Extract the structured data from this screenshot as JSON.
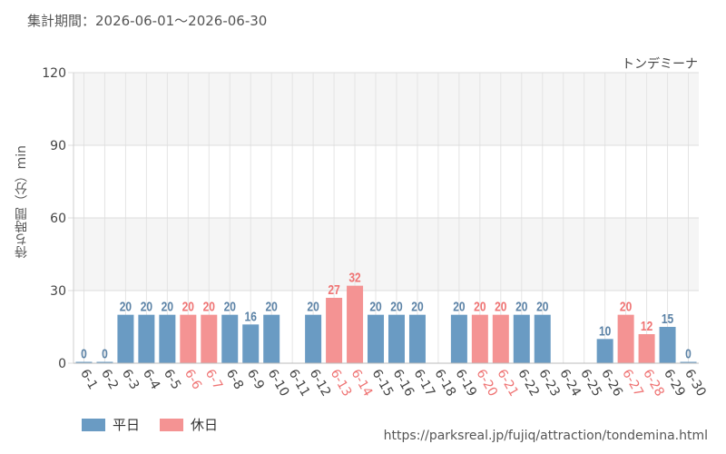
{
  "header": {
    "period_text": "集計期間：2026-06-01～2026-06-30",
    "attraction_name": "トンデミーナ",
    "source_url": "https://parksreal.jp/fujiq/attraction/tondemina.html"
  },
  "colors": {
    "weekday": "#6a9bc3",
    "holiday": "#f49393",
    "weekday_label": "#5b82a6",
    "holiday_label": "#ef7373",
    "band": "#f5f5f5",
    "grid": "#e4e4e4"
  },
  "legend": [
    {
      "label": "平日",
      "key": "weekday"
    },
    {
      "label": "休日",
      "key": "holiday"
    }
  ],
  "chart_data": {
    "type": "bar",
    "ylabel": "待ち時間（分）min",
    "ylim": [
      0,
      120
    ],
    "yticks": [
      0,
      30,
      60,
      90,
      120
    ],
    "grid": true,
    "legend_position": "bottom-left",
    "categories": [
      "6-1",
      "6-2",
      "6-3",
      "6-4",
      "6-5",
      "6-6",
      "6-7",
      "6-8",
      "6-9",
      "6-10",
      "6-11",
      "6-12",
      "6-13",
      "6-14",
      "6-15",
      "6-16",
      "6-17",
      "6-18",
      "6-19",
      "6-20",
      "6-21",
      "6-22",
      "6-23",
      "6-24",
      "6-25",
      "6-26",
      "6-27",
      "6-28",
      "6-29",
      "6-30"
    ],
    "values": [
      0,
      0,
      20,
      20,
      20,
      20,
      20,
      20,
      16,
      20,
      null,
      20,
      27,
      32,
      20,
      20,
      20,
      null,
      20,
      20,
      20,
      20,
      20,
      null,
      null,
      10,
      20,
      12,
      15,
      0
    ],
    "day_type": [
      "weekday",
      "weekday",
      "weekday",
      "weekday",
      "weekday",
      "holiday",
      "holiday",
      "weekday",
      "weekday",
      "weekday",
      "weekday",
      "weekday",
      "holiday",
      "holiday",
      "weekday",
      "weekday",
      "weekday",
      "weekday",
      "weekday",
      "holiday",
      "holiday",
      "weekday",
      "weekday",
      "weekday",
      "weekday",
      "weekday",
      "holiday",
      "holiday",
      "weekday",
      "weekday"
    ]
  }
}
